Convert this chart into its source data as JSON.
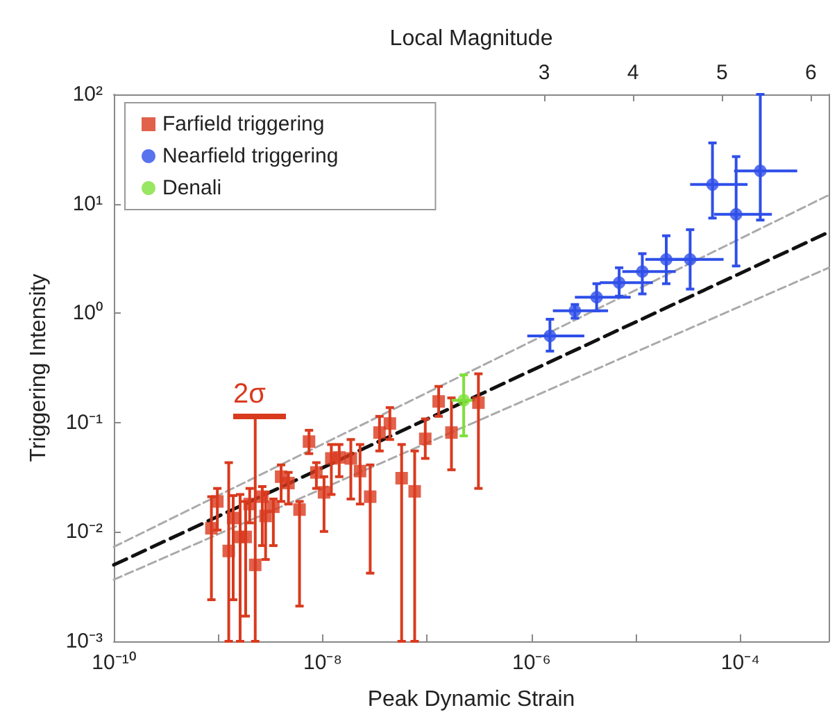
{
  "chart_data": {
    "type": "scatter",
    "xlabel": "Peak Dynamic Strain",
    "ylabel": "Triggering Intensity",
    "x2label": "Local Magnitude",
    "log": "xy",
    "grid": false,
    "legend": "top left",
    "xlim": [
      1e-10,
      0.0007
    ],
    "xticks": [
      {
        "value": 1e-10,
        "label": "10⁻¹⁰"
      },
      {
        "value": 1e-09,
        "label": null
      },
      {
        "value": 1e-08,
        "label": "10⁻⁸"
      },
      {
        "value": 1e-07,
        "label": null
      },
      {
        "value": 1e-06,
        "label": "10⁻⁶"
      },
      {
        "value": 1e-05,
        "label": null
      },
      {
        "value": 0.0001,
        "label": "10⁻⁴"
      }
    ],
    "ylim": [
      0.001,
      100
    ],
    "yticks": [
      {
        "value": 0.001,
        "label": "10⁻³"
      },
      {
        "value": 0.01,
        "label": "10⁻²"
      },
      {
        "value": 0.1,
        "label": "10⁻¹"
      },
      {
        "value": 1,
        "label": "10⁰"
      },
      {
        "value": 10,
        "label": "10¹"
      },
      {
        "value": 100,
        "label": "10²"
      }
    ],
    "x2lim": [
      -1.84,
      6.2
    ],
    "x2ticks": [
      3,
      4,
      5,
      6
    ],
    "annotations": [
      "2σ"
    ],
    "series": [
      {
        "name": "Farfield triggering",
        "marker": "square",
        "color": "#d93a1e",
        "x": [
          8.6e-10,
          9.8e-10,
          1.26e-09,
          1.39e-09,
          1.62e-09,
          1.83e-09,
          2e-09,
          2.26e-09,
          2.64e-09,
          2.84e-09,
          3.37e-09,
          4e-09,
          4.7e-09,
          6e-09,
          7.4e-09,
          8.7e-09,
          1.03e-08,
          1.21e-08,
          1.44e-08,
          1.86e-08,
          2.28e-08,
          2.85e-08,
          3.5e-08,
          4.4e-08,
          5.7e-08,
          7.6e-08,
          9.6e-08,
          1.29e-07,
          1.71e-07,
          3.1e-07
        ],
        "values": [
          0.0108,
          0.019,
          0.0067,
          0.0134,
          0.009,
          0.009,
          0.018,
          0.005,
          0.021,
          0.014,
          0.017,
          0.032,
          0.028,
          0.016,
          0.067,
          0.035,
          0.023,
          0.047,
          0.048,
          0.047,
          0.036,
          0.021,
          0.081,
          0.098,
          0.031,
          0.0235,
          0.071,
          0.156,
          0.081,
          0.152
        ],
        "errors": [
          [
            0.0024,
            0.021
          ],
          [
            0.0104,
            0.025
          ],
          [
            0.001,
            0.043
          ],
          [
            0.0024,
            0.0215
          ],
          [
            0.001,
            0.022
          ],
          [
            0.0017,
            0.019
          ],
          [
            0.0121,
            0.025
          ],
          [
            0.001,
            0.116
          ],
          [
            0.0075,
            0.026
          ],
          [
            0.0056,
            0.023
          ],
          [
            0.0075,
            0.02
          ],
          [
            0.019,
            0.041
          ],
          [
            0.018,
            0.035
          ],
          [
            0.0021,
            0.019
          ],
          [
            0.052,
            0.085
          ],
          [
            0.025,
            0.043
          ],
          [
            0.0101,
            0.032
          ],
          [
            0.022,
            0.063
          ],
          [
            0.032,
            0.063
          ],
          [
            0.02,
            0.07
          ],
          [
            0.018,
            0.063
          ],
          [
            0.0042,
            0.041
          ],
          [
            0.055,
            0.114
          ],
          [
            0.07,
            0.137
          ],
          [
            0.001,
            0.063
          ],
          [
            0.001,
            0.055
          ],
          [
            0.047,
            0.108
          ],
          [
            0.114,
            0.214
          ],
          [
            0.037,
            0.168
          ],
          [
            0.025,
            0.279
          ]
        ]
      },
      {
        "name": "Nearfield triggering",
        "marker": "circle",
        "color": "#2f4fe8",
        "x": [
          1.5e-06,
          2.6e-06,
          4.2e-06,
          6.9e-06,
          1.15e-05,
          1.95e-05,
          3.3e-05,
          5.4e-05,
          9.1e-05,
          0.000155
        ],
        "values": [
          0.62,
          1.05,
          1.4,
          1.9,
          2.4,
          3.1,
          3.1,
          15,
          8,
          20
        ],
        "errors": [
          [
            0.45,
            0.88
          ],
          [
            0.9,
            1.2
          ],
          [
            1.05,
            1.86
          ],
          [
            1.43,
            2.6
          ],
          [
            1.5,
            3.5
          ],
          [
            1.86,
            5.1
          ],
          [
            1.66,
            5.8
          ],
          [
            7.4,
            36
          ],
          [
            2.7,
            27
          ],
          [
            7.1,
            100
          ]
        ],
        "xerrors": [
          [
            9.1e-07,
            3.2e-06
          ],
          [
            1.6e-06,
            5.4e-06
          ],
          [
            2.6e-06,
            8.9e-06
          ],
          [
            4.5e-06,
            1.45e-05
          ],
          [
            7.4e-06,
            2.4e-05
          ],
          [
            1.23e-05,
            4e-05
          ],
          [
            1.95e-05,
            6.9e-05
          ],
          [
            3.3e-05,
            0.000117
          ],
          [
            5.6e-05,
            0.0002
          ],
          [
            8.7e-05,
            0.00035
          ]
        ]
      },
      {
        "name": "Denali",
        "marker": "circle",
        "color": "#7ee03a",
        "x": [
          2.24e-07
        ],
        "values": [
          0.16
        ],
        "errors": [
          [
            0.0755,
            0.273
          ]
        ],
        "xerrors": [
          [
            1.71e-07,
            2.89e-07
          ]
        ]
      },
      {
        "type": "line",
        "color": "#111111",
        "line_style": "dashed",
        "marker": "none",
        "x": [
          1e-10,
          0.0007
        ],
        "values": [
          0.005,
          5.5
        ]
      },
      {
        "type": "line",
        "color": "#aaaaaa",
        "line_style": "dashed",
        "marker": "none",
        "x": [
          1e-10,
          0.0007
        ],
        "values": [
          0.0073,
          12
        ]
      },
      {
        "type": "line",
        "color": "#aaaaaa",
        "line_style": "dashed",
        "marker": "none",
        "x": [
          1e-10,
          0.0007
        ],
        "values": [
          0.00366,
          2.6
        ]
      }
    ]
  }
}
